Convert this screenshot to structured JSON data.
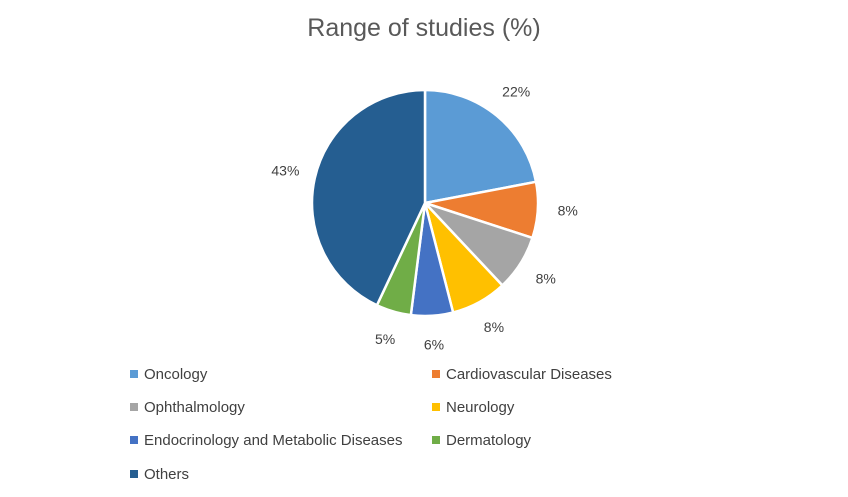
{
  "chart_data": {
    "type": "pie",
    "title": "Range of studies (%)",
    "categories": [
      "Oncology",
      "Cardiovascular Diseases",
      "Ophthalmology",
      "Neurology",
      "Endocrinology and Metabolic Diseases",
      "Dermatology",
      "Others"
    ],
    "values": [
      22,
      8,
      8,
      8,
      6,
      5,
      43
    ],
    "labels": [
      "22%",
      "8%",
      "8%",
      "8%",
      "6%",
      "5%",
      "43%"
    ],
    "colors": [
      "#5B9BD5",
      "#ED7D31",
      "#A5A5A5",
      "#FFC000",
      "#4472C4",
      "#70AD47",
      "#255E91"
    ],
    "legend_position": "bottom"
  }
}
